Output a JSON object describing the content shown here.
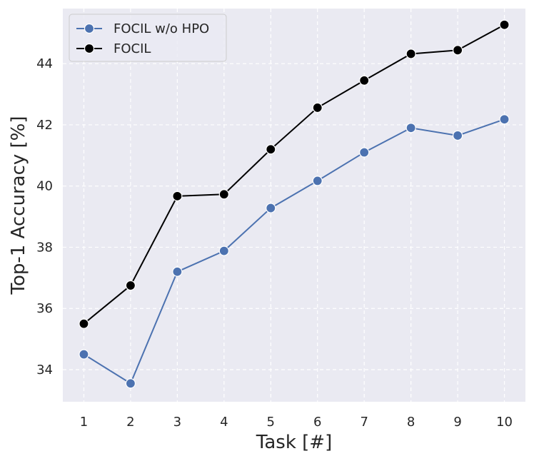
{
  "chart_data": {
    "type": "line",
    "title": "",
    "xlabel": "Task [#]",
    "ylabel": "Top-1 Accuracy [%]",
    "x": [
      1,
      2,
      3,
      4,
      5,
      6,
      7,
      8,
      9,
      10
    ],
    "xlim": [
      0.55,
      10.45
    ],
    "ylim": [
      32.95,
      45.8
    ],
    "yticks": [
      34,
      36,
      38,
      40,
      42,
      44
    ],
    "grid": true,
    "legend_position": "top-left",
    "background_color": "#eaeaf2",
    "series": [
      {
        "name": "FOCIL w/o HPO",
        "color": "#4c72b0",
        "values": [
          34.5,
          33.55,
          37.2,
          37.88,
          39.28,
          40.17,
          41.1,
          41.9,
          41.65,
          42.18
        ]
      },
      {
        "name": "FOCIL",
        "color": "#000000",
        "values": [
          35.5,
          36.75,
          39.67,
          39.73,
          41.2,
          42.56,
          43.45,
          44.32,
          44.44,
          45.27
        ]
      }
    ]
  }
}
